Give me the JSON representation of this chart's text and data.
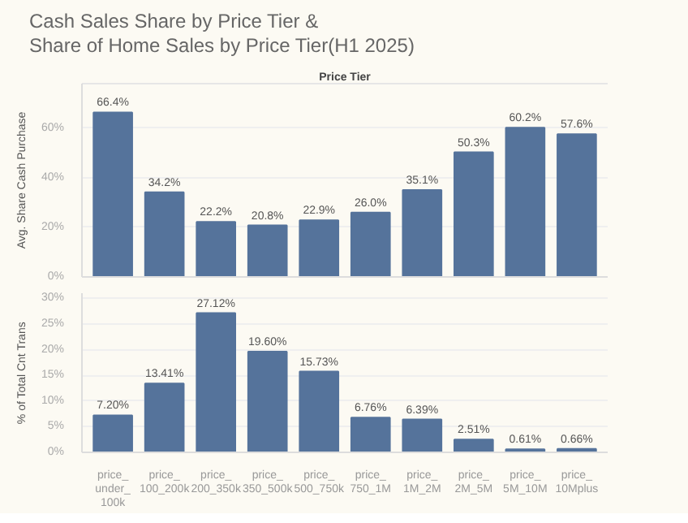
{
  "chart_data": [
    {
      "type": "bar",
      "title": "Cash Sales Share by Price Tier &\nShare of Home Sales by Price Tier(H1 2025)",
      "xlabel": "Price Tier",
      "ylabel": "Avg. Share Cash Purchase",
      "categories": [
        null,
        null,
        null,
        null,
        null,
        null,
        null,
        null,
        null,
        null
      ],
      "series": [
        {
          "color": "#55739b",
          "values": [
            66.4,
            34.2,
            22.2,
            20.8,
            22.9,
            26.0,
            35.1,
            50.3,
            60.2,
            57.6
          ],
          "value_labels": [
            "66.4%",
            "34.2%",
            "22.2%",
            "20.8%",
            "22.9%",
            "26.0%",
            "35.1%",
            "50.3%",
            "60.2%",
            "57.6%"
          ]
        }
      ],
      "ylim": [
        0,
        78
      ],
      "yticks": [
        {
          "value": 0,
          "label": "0%"
        },
        {
          "value": 20,
          "label": "20%"
        },
        {
          "value": 40,
          "label": "40%"
        },
        {
          "value": 60,
          "label": "60%"
        }
      ],
      "grid": "y",
      "tick_labels": "y"
    },
    {
      "type": "bar",
      "ylabel": "% of Total Cnt Trans",
      "categories": [
        "price_\nunder_\n100k",
        "price_\n100_200k",
        "price_\n200_350k",
        "price_\n350_500k",
        "price_\n500_750k",
        "price_\n750_1M",
        "price_\n1M_2M",
        "price_\n2M_5M",
        "price_\n5M_10M",
        "price_\n10Mplus"
      ],
      "series": [
        {
          "color": "#55739b",
          "values": [
            7.2,
            13.41,
            27.12,
            19.6,
            15.73,
            6.76,
            6.39,
            2.51,
            0.61,
            0.66
          ],
          "value_labels": [
            "7.20%",
            "13.41%",
            "27.12%",
            "19.60%",
            "15.73%",
            "6.76%",
            "6.39%",
            "2.51%",
            "0.61%",
            "0.66%"
          ]
        }
      ],
      "ylim": [
        0,
        31
      ],
      "yticks": [
        {
          "value": 0,
          "label": "0%"
        },
        {
          "value": 5,
          "label": "5%"
        },
        {
          "value": 10,
          "label": "10%"
        },
        {
          "value": 15,
          "label": "15%"
        },
        {
          "value": 20,
          "label": "20%"
        },
        {
          "value": 25,
          "label": "25%"
        },
        {
          "value": 30,
          "label": "30%"
        }
      ],
      "grid": "y"
    }
  ]
}
